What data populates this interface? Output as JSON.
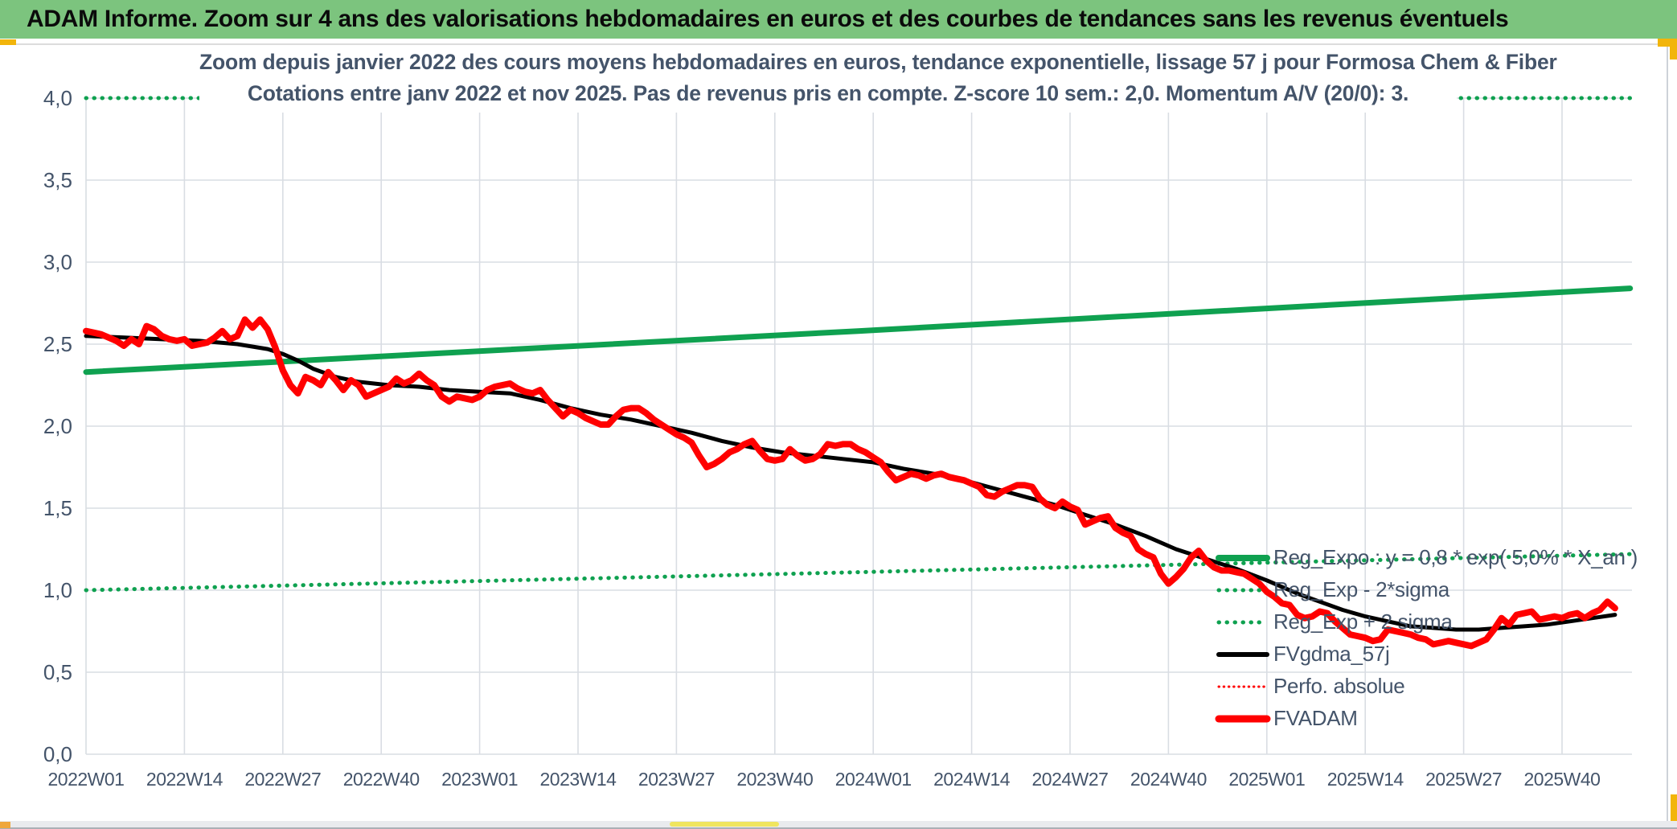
{
  "window": {
    "header_title": "ADAM Informe. Zoom sur 4 ans des valorisations hebdomadaires en euros et des courbes de tendances sans les revenus éventuels",
    "header_bg": "#7CC47E",
    "accent_gold": "#F2B50B",
    "text_color": "#44546A"
  },
  "chart_data": {
    "type": "line",
    "title_line1": "Zoom depuis janvier 2022 des cours moyens hebdomadaires en euros, tendance exponentielle, lissage 57 j pour Formosa Chem & Fiber",
    "title_line2": "Cotations entre janv 2022 et nov 2025. Pas de revenus pris en compte. Z-score 10 sem.: 2,0. Momentum A/V (20/0): 3.",
    "grid": true,
    "legend_position": "right-middle",
    "colors": {
      "green": "#0FA150",
      "red": "#FF0000",
      "black": "#000000",
      "gridline": "#D9DDE3"
    },
    "y_axis": {
      "min": 0,
      "max": 4,
      "tick_values": [
        4.0,
        3.5,
        3.0,
        2.5,
        2.0,
        1.5,
        1.0,
        0.5,
        0.0
      ],
      "tick_labels": [
        "4,0",
        "3,5",
        "3,0",
        "2,5",
        "2,0",
        "1,5",
        "1,0",
        "0,5",
        "0,0"
      ]
    },
    "x_axis": {
      "unit": "ISO week",
      "tick_week_indices": [
        0,
        13,
        26,
        39,
        52,
        65,
        78,
        91,
        104,
        117,
        130,
        143,
        156,
        169,
        182,
        195
      ],
      "tick_labels": [
        "2022W01",
        "2022W14",
        "2022W27",
        "2022W40",
        "2023W01",
        "2023W14",
        "2023W27",
        "2023W40",
        "2024W01",
        "2024W14",
        "2024W27",
        "2024W40",
        "2025W01",
        "2025W14",
        "2025W27",
        "2025W40"
      ]
    },
    "series": [
      {
        "name": "Reg_Expo : y = 0,8 * exp( 5,0% * X_an )",
        "color": "#0FA150",
        "style": "solid",
        "width": 7,
        "points": [
          [
            0,
            2.33
          ],
          [
            102,
            2.58
          ],
          [
            204,
            2.84
          ]
        ]
      },
      {
        "name": "Reg_Exp - 2*sigma",
        "color": "#0FA150",
        "style": "dotted",
        "width": 5,
        "points": [
          [
            0,
            1.0
          ],
          [
            102,
            1.11
          ],
          [
            204,
            1.22
          ]
        ]
      },
      {
        "name": "Reg_Exp + 2 sigma",
        "color": "#0FA150",
        "style": "dotted",
        "width": 5,
        "note": "clipped at y-axis max 4,0",
        "points": [
          [
            0,
            4.0
          ],
          [
            204,
            4.0
          ]
        ]
      },
      {
        "name": "FVgdma_57j",
        "color": "#000000",
        "style": "solid",
        "width": 5,
        "points": [
          [
            0,
            2.55
          ],
          [
            5,
            2.54
          ],
          [
            10,
            2.53
          ],
          [
            15,
            2.52
          ],
          [
            20,
            2.5
          ],
          [
            24,
            2.47
          ],
          [
            26,
            2.44
          ],
          [
            28,
            2.4
          ],
          [
            30,
            2.35
          ],
          [
            33,
            2.3
          ],
          [
            36,
            2.27
          ],
          [
            40,
            2.25
          ],
          [
            44,
            2.24
          ],
          [
            48,
            2.22
          ],
          [
            52,
            2.21
          ],
          [
            56,
            2.2
          ],
          [
            60,
            2.16
          ],
          [
            64,
            2.11
          ],
          [
            68,
            2.07
          ],
          [
            72,
            2.04
          ],
          [
            76,
            2.0
          ],
          [
            80,
            1.96
          ],
          [
            84,
            1.91
          ],
          [
            88,
            1.87
          ],
          [
            92,
            1.84
          ],
          [
            96,
            1.82
          ],
          [
            100,
            1.8
          ],
          [
            104,
            1.78
          ],
          [
            108,
            1.74
          ],
          [
            112,
            1.71
          ],
          [
            116,
            1.67
          ],
          [
            120,
            1.62
          ],
          [
            124,
            1.57
          ],
          [
            128,
            1.52
          ],
          [
            132,
            1.46
          ],
          [
            136,
            1.4
          ],
          [
            140,
            1.33
          ],
          [
            144,
            1.25
          ],
          [
            148,
            1.19
          ],
          [
            152,
            1.13
          ],
          [
            156,
            1.06
          ],
          [
            160,
            0.98
          ],
          [
            163,
            0.93
          ],
          [
            166,
            0.88
          ],
          [
            169,
            0.84
          ],
          [
            172,
            0.81
          ],
          [
            175,
            0.78
          ],
          [
            178,
            0.77
          ],
          [
            181,
            0.76
          ],
          [
            184,
            0.76
          ],
          [
            187,
            0.77
          ],
          [
            190,
            0.78
          ],
          [
            193,
            0.79
          ],
          [
            196,
            0.81
          ],
          [
            199,
            0.83
          ],
          [
            202,
            0.85
          ]
        ]
      },
      {
        "name": "Perfo. absolue",
        "color": "#FF0000",
        "style": "dotted",
        "width": 3,
        "points_ref": "FVADAM",
        "note": "coincides with FVADAM (no revenues taken into account)"
      },
      {
        "name": "FVADAM",
        "color": "#FF0000",
        "style": "solid",
        "width": 8,
        "points": [
          [
            0,
            2.58
          ],
          [
            1,
            2.57
          ],
          [
            2,
            2.56
          ],
          [
            3,
            2.54
          ],
          [
            4,
            2.52
          ],
          [
            5,
            2.49
          ],
          [
            6,
            2.53
          ],
          [
            7,
            2.5
          ],
          [
            8,
            2.61
          ],
          [
            9,
            2.59
          ],
          [
            10,
            2.55
          ],
          [
            11,
            2.53
          ],
          [
            12,
            2.52
          ],
          [
            13,
            2.53
          ],
          [
            14,
            2.49
          ],
          [
            15,
            2.5
          ],
          [
            16,
            2.51
          ],
          [
            17,
            2.54
          ],
          [
            18,
            2.58
          ],
          [
            19,
            2.53
          ],
          [
            20,
            2.55
          ],
          [
            21,
            2.65
          ],
          [
            22,
            2.6
          ],
          [
            23,
            2.65
          ],
          [
            24,
            2.59
          ],
          [
            25,
            2.48
          ],
          [
            26,
            2.34
          ],
          [
            27,
            2.25
          ],
          [
            28,
            2.2
          ],
          [
            29,
            2.3
          ],
          [
            30,
            2.28
          ],
          [
            31,
            2.25
          ],
          [
            32,
            2.33
          ],
          [
            33,
            2.28
          ],
          [
            34,
            2.22
          ],
          [
            35,
            2.28
          ],
          [
            36,
            2.25
          ],
          [
            37,
            2.18
          ],
          [
            38,
            2.2
          ],
          [
            39,
            2.22
          ],
          [
            40,
            2.24
          ],
          [
            41,
            2.29
          ],
          [
            42,
            2.26
          ],
          [
            43,
            2.28
          ],
          [
            44,
            2.32
          ],
          [
            45,
            2.28
          ],
          [
            46,
            2.25
          ],
          [
            47,
            2.18
          ],
          [
            48,
            2.15
          ],
          [
            49,
            2.18
          ],
          [
            50,
            2.17
          ],
          [
            51,
            2.16
          ],
          [
            52,
            2.18
          ],
          [
            53,
            2.22
          ],
          [
            54,
            2.24
          ],
          [
            55,
            2.25
          ],
          [
            56,
            2.26
          ],
          [
            57,
            2.23
          ],
          [
            58,
            2.21
          ],
          [
            59,
            2.2
          ],
          [
            60,
            2.22
          ],
          [
            61,
            2.16
          ],
          [
            62,
            2.11
          ],
          [
            63,
            2.06
          ],
          [
            64,
            2.1
          ],
          [
            65,
            2.08
          ],
          [
            66,
            2.05
          ],
          [
            67,
            2.03
          ],
          [
            68,
            2.01
          ],
          [
            69,
            2.01
          ],
          [
            70,
            2.06
          ],
          [
            71,
            2.1
          ],
          [
            72,
            2.11
          ],
          [
            73,
            2.11
          ],
          [
            74,
            2.08
          ],
          [
            75,
            2.04
          ],
          [
            76,
            2.01
          ],
          [
            77,
            1.98
          ],
          [
            78,
            1.95
          ],
          [
            79,
            1.93
          ],
          [
            80,
            1.9
          ],
          [
            81,
            1.82
          ],
          [
            82,
            1.75
          ],
          [
            83,
            1.77
          ],
          [
            84,
            1.8
          ],
          [
            85,
            1.84
          ],
          [
            86,
            1.86
          ],
          [
            87,
            1.89
          ],
          [
            88,
            1.91
          ],
          [
            89,
            1.85
          ],
          [
            90,
            1.8
          ],
          [
            91,
            1.79
          ],
          [
            92,
            1.8
          ],
          [
            93,
            1.86
          ],
          [
            94,
            1.82
          ],
          [
            95,
            1.79
          ],
          [
            96,
            1.8
          ],
          [
            97,
            1.83
          ],
          [
            98,
            1.89
          ],
          [
            99,
            1.88
          ],
          [
            100,
            1.89
          ],
          [
            101,
            1.89
          ],
          [
            102,
            1.86
          ],
          [
            103,
            1.84
          ],
          [
            104,
            1.81
          ],
          [
            105,
            1.78
          ],
          [
            106,
            1.72
          ],
          [
            107,
            1.67
          ],
          [
            108,
            1.69
          ],
          [
            109,
            1.71
          ],
          [
            110,
            1.7
          ],
          [
            111,
            1.68
          ],
          [
            112,
            1.7
          ],
          [
            113,
            1.71
          ],
          [
            114,
            1.69
          ],
          [
            115,
            1.68
          ],
          [
            116,
            1.67
          ],
          [
            117,
            1.65
          ],
          [
            118,
            1.63
          ],
          [
            119,
            1.58
          ],
          [
            120,
            1.57
          ],
          [
            121,
            1.6
          ],
          [
            122,
            1.62
          ],
          [
            123,
            1.64
          ],
          [
            124,
            1.64
          ],
          [
            125,
            1.63
          ],
          [
            126,
            1.56
          ],
          [
            127,
            1.52
          ],
          [
            128,
            1.5
          ],
          [
            129,
            1.54
          ],
          [
            130,
            1.51
          ],
          [
            131,
            1.49
          ],
          [
            132,
            1.4
          ],
          [
            133,
            1.42
          ],
          [
            134,
            1.44
          ],
          [
            135,
            1.45
          ],
          [
            136,
            1.38
          ],
          [
            137,
            1.35
          ],
          [
            138,
            1.33
          ],
          [
            139,
            1.25
          ],
          [
            140,
            1.22
          ],
          [
            141,
            1.2
          ],
          [
            142,
            1.1
          ],
          [
            143,
            1.04
          ],
          [
            144,
            1.08
          ],
          [
            145,
            1.13
          ],
          [
            146,
            1.2
          ],
          [
            147,
            1.24
          ],
          [
            148,
            1.18
          ],
          [
            149,
            1.14
          ],
          [
            150,
            1.12
          ],
          [
            151,
            1.12
          ],
          [
            152,
            1.11
          ],
          [
            153,
            1.1
          ],
          [
            154,
            1.07
          ],
          [
            155,
            1.04
          ],
          [
            156,
            0.99
          ],
          [
            157,
            0.96
          ],
          [
            158,
            0.92
          ],
          [
            159,
            0.91
          ],
          [
            160,
            0.85
          ],
          [
            161,
            0.83
          ],
          [
            162,
            0.84
          ],
          [
            163,
            0.87
          ],
          [
            164,
            0.86
          ],
          [
            165,
            0.81
          ],
          [
            166,
            0.77
          ],
          [
            167,
            0.73
          ],
          [
            168,
            0.72
          ],
          [
            169,
            0.71
          ],
          [
            170,
            0.69
          ],
          [
            171,
            0.7
          ],
          [
            172,
            0.76
          ],
          [
            173,
            0.75
          ],
          [
            174,
            0.74
          ],
          [
            175,
            0.73
          ],
          [
            176,
            0.71
          ],
          [
            177,
            0.7
          ],
          [
            178,
            0.67
          ],
          [
            179,
            0.68
          ],
          [
            180,
            0.69
          ],
          [
            181,
            0.68
          ],
          [
            182,
            0.67
          ],
          [
            183,
            0.66
          ],
          [
            184,
            0.68
          ],
          [
            185,
            0.7
          ],
          [
            186,
            0.76
          ],
          [
            187,
            0.83
          ],
          [
            188,
            0.79
          ],
          [
            189,
            0.85
          ],
          [
            190,
            0.86
          ],
          [
            191,
            0.87
          ],
          [
            192,
            0.82
          ],
          [
            193,
            0.83
          ],
          [
            194,
            0.84
          ],
          [
            195,
            0.83
          ],
          [
            196,
            0.85
          ],
          [
            197,
            0.86
          ],
          [
            198,
            0.83
          ],
          [
            199,
            0.86
          ],
          [
            200,
            0.88
          ],
          [
            201,
            0.93
          ],
          [
            202,
            0.89
          ]
        ]
      }
    ],
    "legend": {
      "items": [
        "Reg_Expo : y = 0,8 * exp( 5,0% * X_an )",
        "Reg_Exp - 2*sigma",
        "Reg_Exp + 2 sigma",
        "FVgdma_57j",
        "Perfo. absolue",
        "FVADAM"
      ]
    }
  }
}
